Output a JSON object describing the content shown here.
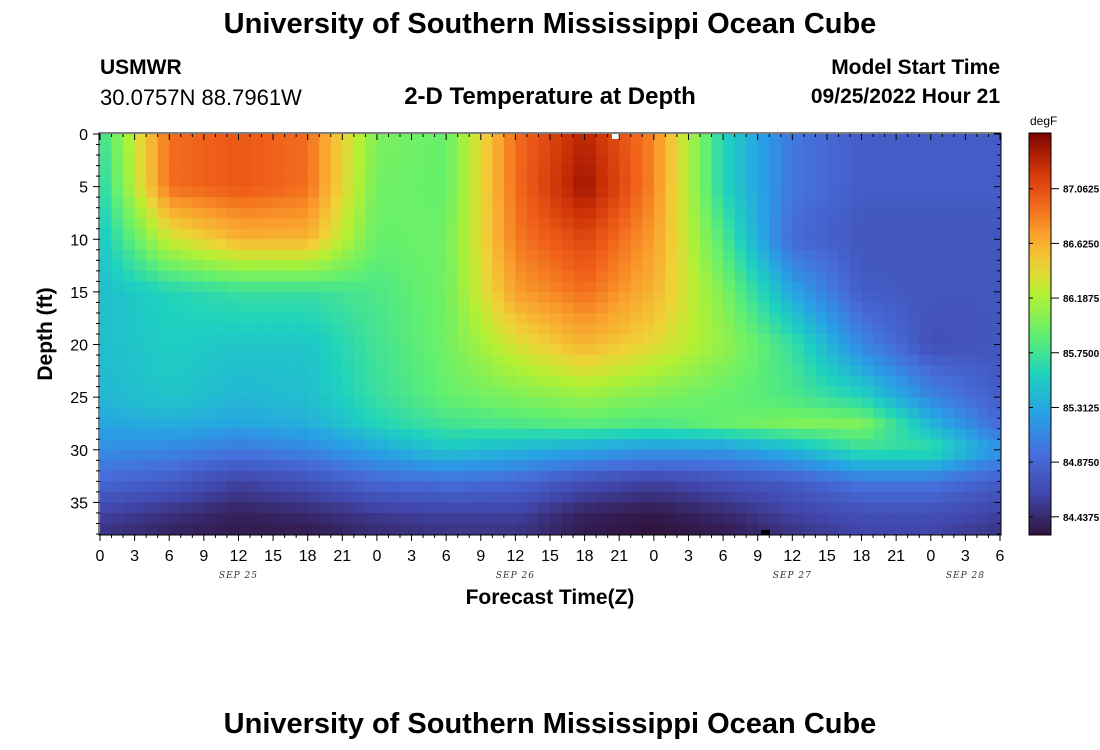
{
  "header": {
    "title": "University of Southern Mississippi Ocean Cube",
    "station": "USMWR",
    "coordinates": "30.0757N  88.7961W",
    "subtitle": "2-D Temperature at Depth",
    "model_label": "Model Start Time",
    "model_time": "09/25/2022 Hour 21"
  },
  "footer": {
    "title": "University of Southern Mississippi Ocean Cube"
  },
  "chart_data": {
    "type": "heatmap",
    "title": "2-D Temperature at Depth",
    "xlabel": "Forecast Time(Z)",
    "ylabel": "Depth (ft)",
    "x_hours_range": [
      0,
      78
    ],
    "x_tick_labels": [
      "0",
      "3",
      "6",
      "9",
      "12",
      "15",
      "18",
      "21",
      "0",
      "3",
      "6",
      "9",
      "12",
      "15",
      "18",
      "21",
      "0",
      "3",
      "6",
      "9",
      "12",
      "15",
      "18",
      "21",
      "0",
      "3",
      "6"
    ],
    "date_labels": [
      {
        "label": "SEP 25",
        "at_hour": 12
      },
      {
        "label": "SEP 26",
        "at_hour": 36
      },
      {
        "label": "SEP 27",
        "at_hour": 60
      },
      {
        "label": "SEP 28",
        "at_hour": 75
      }
    ],
    "y_ticks": [
      0,
      5,
      10,
      15,
      20,
      25,
      30,
      35
    ],
    "y_tick_labels": [
      "0",
      "5",
      "10",
      "15",
      "20",
      "25",
      "30",
      "35"
    ],
    "ylim": [
      38,
      0
    ],
    "colorbar": {
      "unit": "degF",
      "min": 84.3,
      "max": 87.5,
      "tick_values": [
        87.0625,
        86.625,
        86.1875,
        85.75,
        85.3125,
        84.875,
        84.4375
      ],
      "tick_labels": [
        "87.0625",
        "86.6250",
        "86.1875",
        "85.7500",
        "85.3125",
        "84.8750",
        "84.4375"
      ]
    },
    "grid": false,
    "field_depths_ft": [
      0,
      5,
      10,
      15,
      20,
      25,
      27.5,
      30,
      33,
      36,
      38
    ],
    "field_times_hours": [
      0,
      6,
      12,
      18,
      24,
      30,
      36,
      42,
      48,
      54,
      60,
      66,
      72,
      78
    ],
    "field_values_degF": [
      [
        85.7,
        86.9,
        87.0,
        86.9,
        86.0,
        85.9,
        86.9,
        87.3,
        86.8,
        85.6,
        85.0,
        84.8,
        84.8,
        84.8
      ],
      [
        85.6,
        86.9,
        87.0,
        86.9,
        85.95,
        85.9,
        86.9,
        87.4,
        86.8,
        85.6,
        85.0,
        84.8,
        84.8,
        84.8
      ],
      [
        85.5,
        86.3,
        86.6,
        86.6,
        85.9,
        85.95,
        86.85,
        87.1,
        86.7,
        85.8,
        84.9,
        84.75,
        84.75,
        84.75
      ],
      [
        85.45,
        85.6,
        85.7,
        85.7,
        85.8,
        85.95,
        86.7,
        86.9,
        86.6,
        86.0,
        85.3,
        84.8,
        84.75,
        84.75
      ],
      [
        85.45,
        85.55,
        85.5,
        85.5,
        85.75,
        85.95,
        86.35,
        86.6,
        86.4,
        86.1,
        85.7,
        85.1,
        84.7,
        84.75
      ],
      [
        85.4,
        85.5,
        85.4,
        85.45,
        85.7,
        85.9,
        86.0,
        86.1,
        86.0,
        85.9,
        85.8,
        85.6,
        85.1,
        84.8
      ],
      [
        85.3,
        85.35,
        85.3,
        85.35,
        85.6,
        85.75,
        85.8,
        85.85,
        85.8,
        85.9,
        86.0,
        86.0,
        85.4,
        84.9
      ],
      [
        85.15,
        85.1,
        85.0,
        85.1,
        85.3,
        85.5,
        85.4,
        85.3,
        85.2,
        85.2,
        85.4,
        85.7,
        85.7,
        85.2
      ],
      [
        84.9,
        84.8,
        84.6,
        84.7,
        84.9,
        84.95,
        84.9,
        84.7,
        84.6,
        84.7,
        84.8,
        85.0,
        85.0,
        84.8
      ],
      [
        84.6,
        84.5,
        84.4,
        84.45,
        84.55,
        84.6,
        84.6,
        84.4,
        84.35,
        84.45,
        84.6,
        84.7,
        84.7,
        84.6
      ],
      [
        84.5,
        84.4,
        84.35,
        84.35,
        84.45,
        84.5,
        84.5,
        84.35,
        84.3,
        84.35,
        84.5,
        84.6,
        84.6,
        84.5
      ]
    ]
  }
}
